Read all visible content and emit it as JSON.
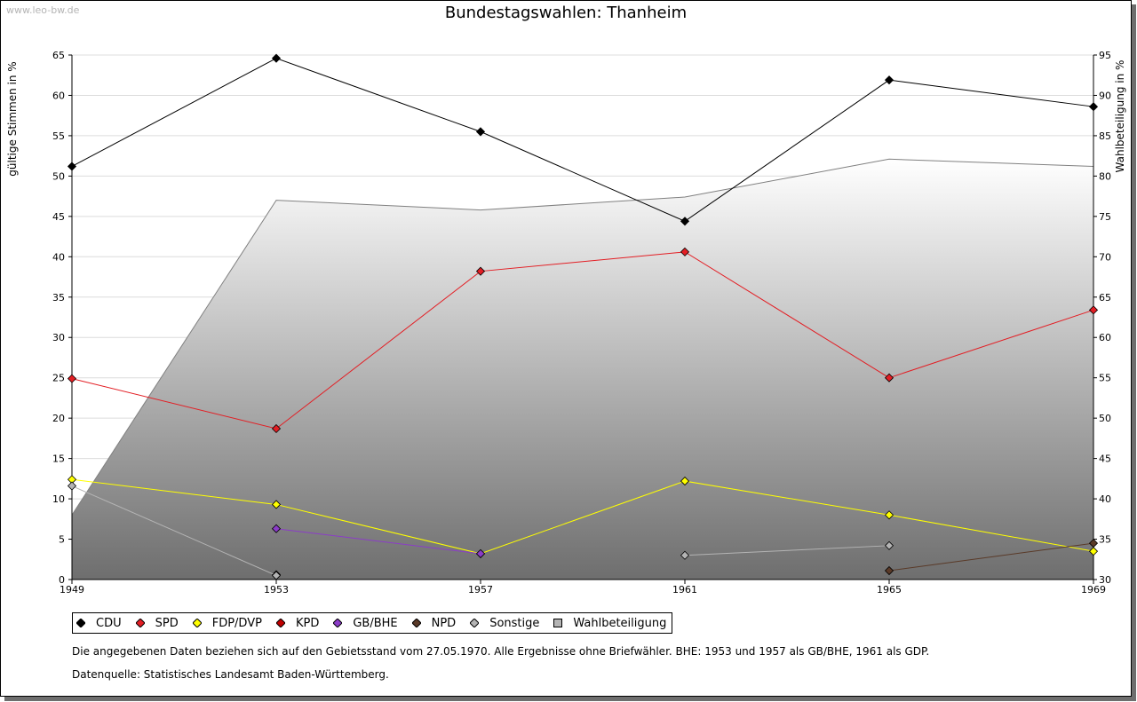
{
  "watermark": "www.leo-bw.de",
  "chart_data": {
    "type": "line",
    "title": "Bundestagswahlen: Thanheim",
    "ylabel": "gültige Stimmen in %",
    "y2label": "Wahlbeteiligung in %",
    "x": [
      "1949",
      "1953",
      "1957",
      "1961",
      "1965",
      "1969"
    ],
    "ylim": [
      0,
      65
    ],
    "yticks": [
      "0",
      "5",
      "10",
      "15",
      "20",
      "25",
      "30",
      "35",
      "40",
      "45",
      "50",
      "55",
      "60",
      "65"
    ],
    "y2lim": [
      30,
      95
    ],
    "y2ticks": [
      "30",
      "35",
      "40",
      "45",
      "50",
      "55",
      "60",
      "65",
      "70",
      "75",
      "80",
      "85",
      "90",
      "95"
    ],
    "grid": true,
    "series": [
      {
        "name": "CDU",
        "color": "#000000",
        "values": [
          51.2,
          64.6,
          55.5,
          44.4,
          61.9,
          58.6
        ]
      },
      {
        "name": "SPD",
        "color": "#e31e24",
        "values": [
          24.9,
          18.7,
          38.2,
          40.6,
          25.0,
          33.4
        ]
      },
      {
        "name": "FDP/DVP",
        "color": "#ffff00",
        "values": [
          12.4,
          9.3,
          3.2,
          12.2,
          8.0,
          3.5
        ]
      },
      {
        "name": "KPD",
        "color": "#c00000",
        "values": [
          null,
          0.6,
          null,
          null,
          null,
          null
        ]
      },
      {
        "name": "GB/BHE",
        "color": "#8b3cc8",
        "values": [
          null,
          6.3,
          3.2,
          null,
          null,
          null
        ]
      },
      {
        "name": "NPD",
        "color": "#5a3a28",
        "values": [
          null,
          null,
          null,
          null,
          1.1,
          4.5
        ]
      },
      {
        "name": "Sonstige",
        "color": "#b4b4b4",
        "values": [
          11.6,
          0.5,
          null,
          3.0,
          4.2,
          null
        ]
      }
    ],
    "turnout": {
      "name": "Wahlbeteiligung",
      "color": "#808080",
      "values": [
        38.0,
        77.0,
        75.8,
        77.4,
        82.1,
        81.2
      ]
    },
    "legend_position": "bottom"
  },
  "legend": [
    "CDU",
    "SPD",
    "FDP/DVP",
    "KPD",
    "GB/BHE",
    "NPD",
    "Sonstige",
    "Wahlbeteiligung"
  ],
  "notes": {
    "line1": "Die angegebenen Daten beziehen sich auf den Gebietsstand vom 27.05.1970. Alle Ergebnisse ohne Briefwähler. BHE: 1953 und 1957 als GB/BHE, 1961 als GDP.",
    "line2": "Datenquelle: Statistisches Landesamt Baden-Württemberg."
  }
}
